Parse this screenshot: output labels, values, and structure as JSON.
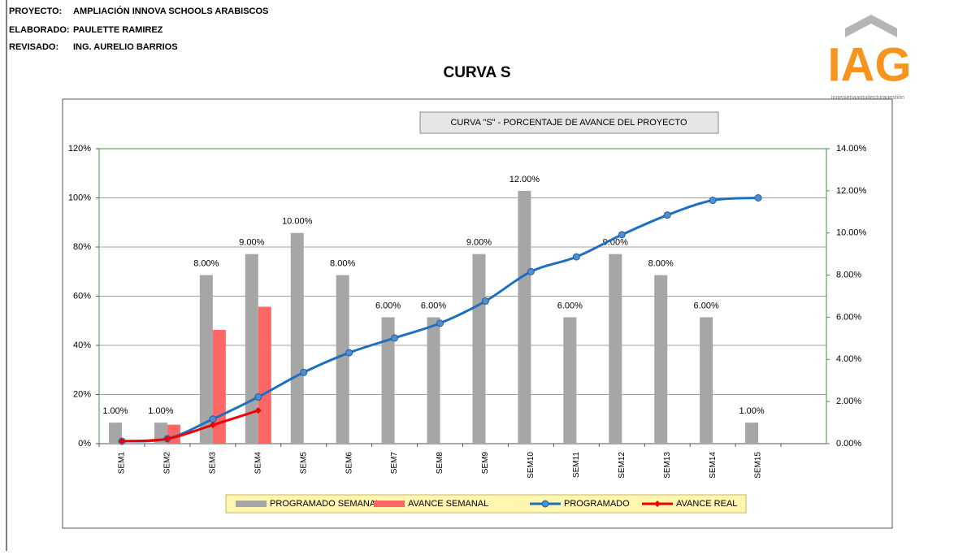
{
  "header": {
    "rows": [
      {
        "label": "PROYECTO:",
        "value": "AMPLIACIÓN INNOVA SCHOOLS ARABISCOS"
      },
      {
        "label": "ELABORADO:",
        "value": "PAULETTE RAMIREZ"
      },
      {
        "label": "REVISADO:",
        "value": "ING. AURELIO BARRIOS"
      }
    ],
    "title": "CURVA S"
  },
  "logo": {
    "text": "IAG",
    "tagline": "ingenieriaarquitecturagestión"
  },
  "chart_data": {
    "type": "bar_line",
    "title": "CURVA \"S\" -  PORCENTAJE DE AVANCE DEL PROYECTO",
    "categories": [
      "SEM1",
      "SEM2",
      "SEM3",
      "SEM4",
      "SEM5",
      "SEM6",
      "SEM7",
      "SEM8",
      "SEM9",
      "SEM10",
      "SEM11",
      "SEM12",
      "SEM13",
      "SEM14",
      "SEM15",
      null
    ],
    "series": [
      {
        "name": "PROGRAMADO SEMANAL",
        "type": "bar",
        "axis": "y2",
        "color": "#a6a6a6",
        "values": [
          1,
          1,
          8,
          9,
          10,
          8,
          6,
          6,
          9,
          12,
          6,
          9,
          8,
          6,
          1,
          null
        ],
        "value_labels": [
          "1.00%",
          "1.00%",
          "8.00%",
          "9.00%",
          "10.00%",
          "8.00%",
          "6.00%",
          "6.00%",
          "9.00%",
          "12.00%",
          "6.00%",
          "9.00%",
          "8.00%",
          "6.00%",
          "1.00%",
          null
        ]
      },
      {
        "name": "AVANCE SEMANAL",
        "type": "bar",
        "axis": "y2",
        "color": "#ff6666",
        "values": [
          null,
          0.9,
          5.4,
          6.5,
          null,
          null,
          null,
          null,
          null,
          null,
          null,
          null,
          null,
          null,
          null,
          null
        ]
      },
      {
        "name": "PROGRAMADO",
        "type": "line",
        "color": "#1f6fbf",
        "values": [
          1,
          2,
          10,
          19,
          29,
          37,
          43,
          49,
          58,
          70,
          76,
          85,
          93,
          99,
          100,
          null
        ]
      },
      {
        "name": "AVANCE REAL",
        "type": "line",
        "color": "#ee0000",
        "values": [
          1,
          2,
          7.6,
          13.5,
          null,
          null,
          null,
          null,
          null,
          null,
          null,
          null,
          null,
          null,
          null,
          null
        ]
      }
    ],
    "ylim": [
      0,
      120
    ],
    "yticks": [
      {
        "value": 0,
        "label": "0%"
      },
      {
        "value": 20,
        "label": "20%"
      },
      {
        "value": 40,
        "label": "40%"
      },
      {
        "value": 60,
        "label": "60%"
      },
      {
        "value": 80,
        "label": "80%"
      },
      {
        "value": 100,
        "label": "100%"
      },
      {
        "value": 120,
        "label": "120%"
      }
    ],
    "y2lim": [
      0,
      14
    ],
    "y2ticks": [
      {
        "value": 0,
        "label": "0.00%"
      },
      {
        "value": 2,
        "label": "2.00%"
      },
      {
        "value": 4,
        "label": "4.00%"
      },
      {
        "value": 6,
        "label": "6.00%"
      },
      {
        "value": 8,
        "label": "8.00%"
      },
      {
        "value": 10,
        "label": "10.00%"
      },
      {
        "value": 12,
        "label": "12.00%"
      },
      {
        "value": 14,
        "label": "14.00%"
      }
    ],
    "grid": true
  }
}
